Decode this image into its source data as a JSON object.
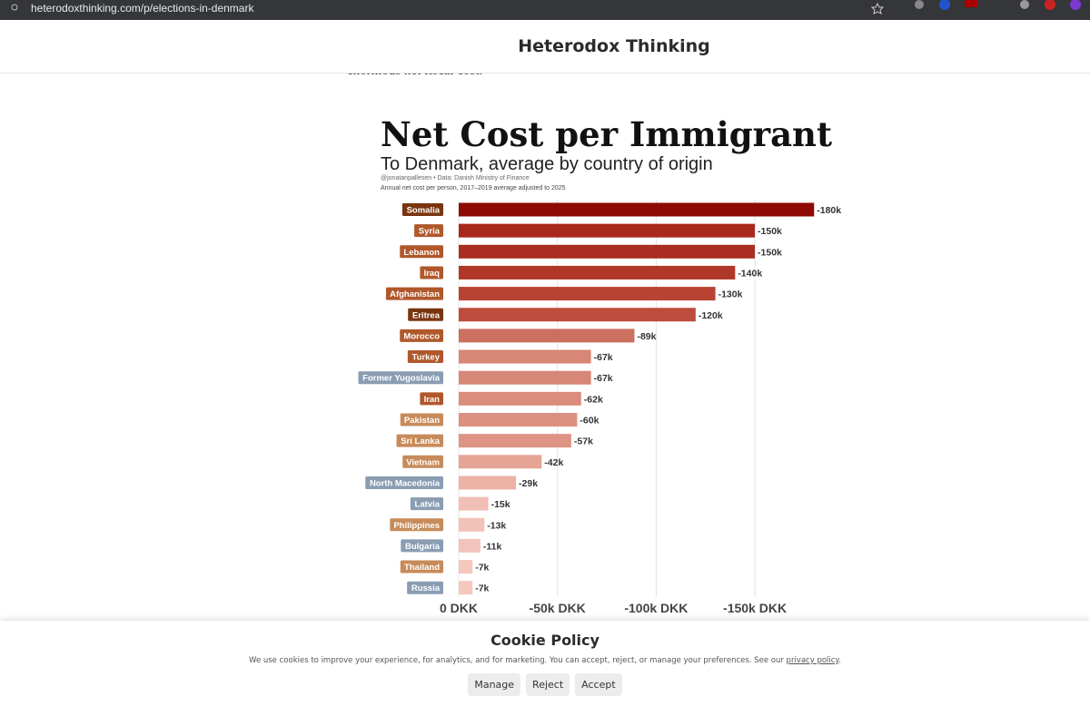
{
  "browser": {
    "url": "heterodoxthinking.com/p/elections-in-denmark"
  },
  "header": {
    "title": "Heterodox Thinking"
  },
  "article": {
    "text_fragment": "enormous net fiscal cost."
  },
  "chart_data": {
    "type": "hbar",
    "title": "Net Cost per Immigrant",
    "subtitle": "To Denmark, average by country of origin",
    "credit": "@jonatanpallesen • Data: Danish Ministry of Finance",
    "note": "Annual net cost per person, 2017–2019 average adjusted to 2025",
    "categories": [
      "Somalia",
      "Syria",
      "Lebanon",
      "Iraq",
      "Afghanistan",
      "Eritrea",
      "Morocco",
      "Turkey",
      "Former Yugoslavia",
      "Iran",
      "Pakistan",
      "Sri Lanka",
      "Vietnam",
      "North Macedonia",
      "Latvia",
      "Philippines",
      "Bulgaria",
      "Thailand",
      "Russia"
    ],
    "values": [
      -180000,
      -150000,
      -150000,
      -140000,
      -130000,
      -120000,
      -89000,
      -67000,
      -67000,
      -62000,
      -60000,
      -57000,
      -42000,
      -29000,
      -15000,
      -13000,
      -11000,
      -7000,
      -7000
    ],
    "value_labels": [
      "-180k",
      "-150k",
      "-150k",
      "-140k",
      "-130k",
      "-120k",
      "-89k",
      "-67k",
      "-67k",
      "-62k",
      "-60k",
      "-57k",
      "-42k",
      "-29k",
      "-15k",
      "-13k",
      "-11k",
      "-7k",
      "-7k"
    ],
    "colors": [
      "#8e0a05",
      "#a8281c",
      "#a92d20",
      "#b03829",
      "#b84332",
      "#bd4c3c",
      "#cc7060",
      "#d88676",
      "#d88676",
      "#dc8c7c",
      "#dd8f80",
      "#de9484",
      "#e6a496",
      "#ecb2a6",
      "#f1bfb5",
      "#f2c1b8",
      "#f3c4bb",
      "#f4c8bf",
      "#f4c8bf"
    ],
    "label_colors": [
      "#7a3510",
      "#b0582b",
      "#b0582b",
      "#b0582b",
      "#b0582b",
      "#7a3510",
      "#b0582b",
      "#b0582b",
      "#8a9db3",
      "#b0582b",
      "#c78b5a",
      "#c78b5a",
      "#c78b5a",
      "#8a9db3",
      "#8a9db3",
      "#c78b5a",
      "#8a9db3",
      "#c78b5a",
      "#8a9db3"
    ],
    "xlim": [
      0,
      -190000
    ],
    "xticks": [
      {
        "value": 0,
        "label": "0 DKK"
      },
      {
        "value": -50000,
        "label": "-50k DKK"
      },
      {
        "value": -100000,
        "label": "-100k DKK"
      },
      {
        "value": -150000,
        "label": "-150k DKK"
      }
    ],
    "grid": true
  },
  "cookie_banner": {
    "title": "Cookie Policy",
    "text": "We use cookies to improve your experience, for analytics, and for marketing. You can accept, reject, or manage your preferences. See our ",
    "link": "privacy policy",
    "text_end": ".",
    "buttons": [
      "Manage",
      "Reject",
      "Accept"
    ]
  }
}
